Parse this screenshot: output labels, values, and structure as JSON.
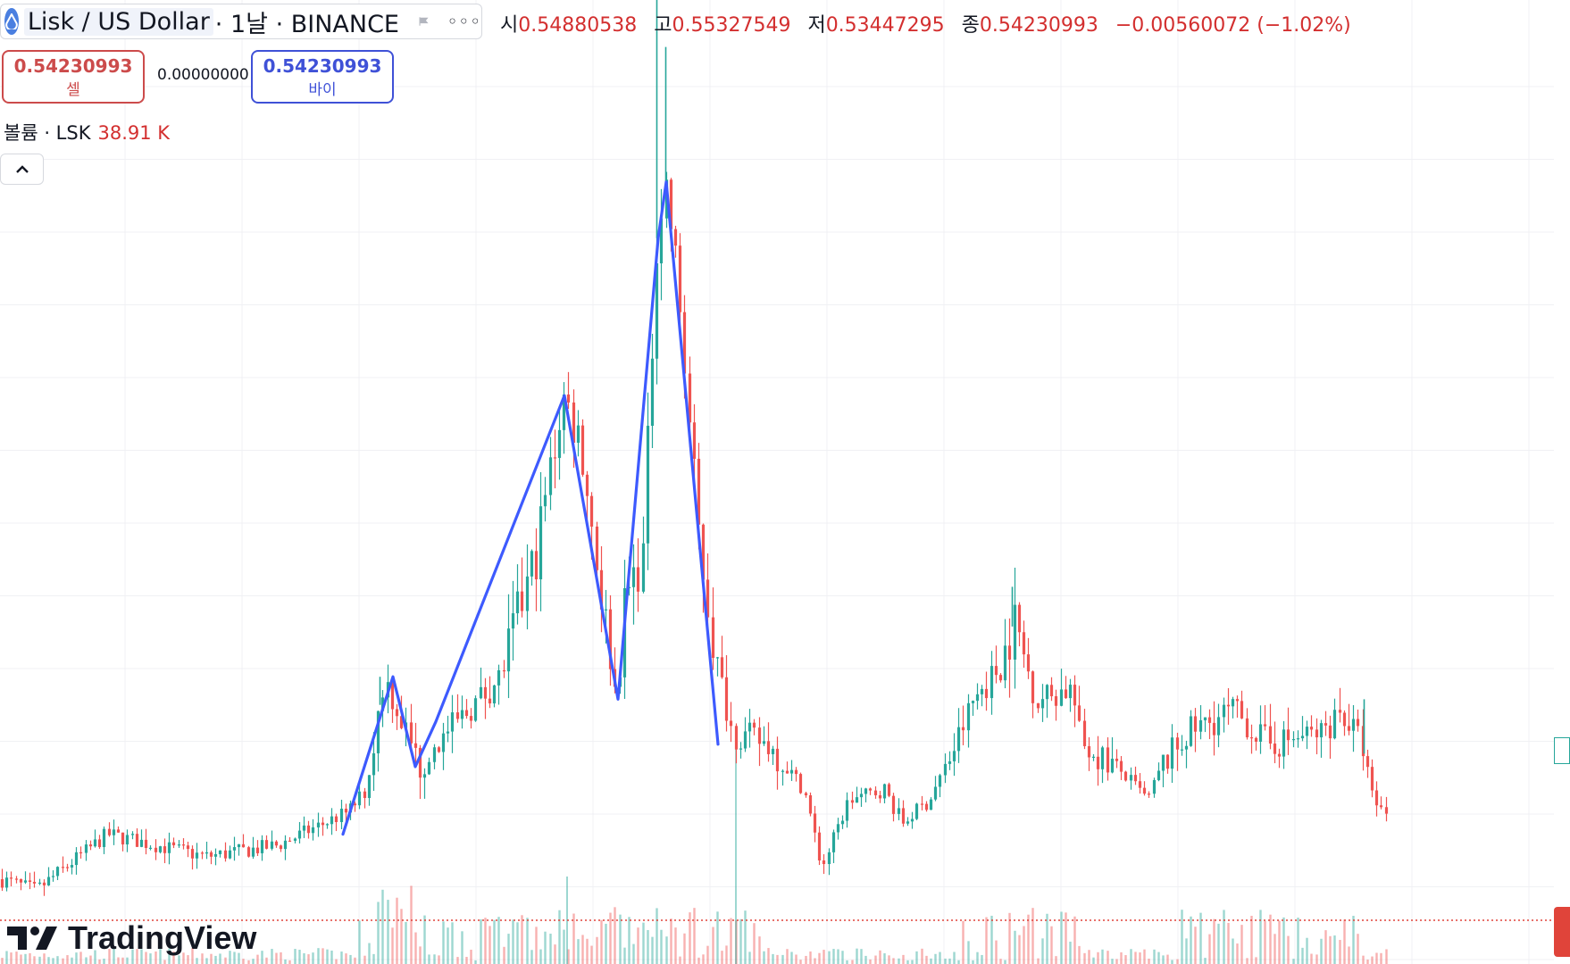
{
  "header": {
    "symbol": "Lisk / US Dollar",
    "meta": "· 1날 · BINANCE",
    "logo_icon": "lisk-droplet-icon",
    "flag_icon": "flag-icon",
    "more_icon": "more-options-icon"
  },
  "ohlc": {
    "open_label": "시",
    "open": "0.54880538",
    "high_label": "고",
    "high": "0.55327549",
    "low_label": "저",
    "low": "0.53447295",
    "close_label": "종",
    "close": "0.54230993",
    "change": "−0.00560072 (−1.02%)"
  },
  "trade": {
    "sell_price": "0.54230993",
    "sell_label": "셀",
    "spread": "0.00000000",
    "buy_price": "0.54230993",
    "buy_label": "바이"
  },
  "volume": {
    "label": "볼륨 · LSK",
    "value": "38.91 K"
  },
  "branding": {
    "name": "TradingView"
  },
  "colors": {
    "up": "#26a69a",
    "down": "#ef5350",
    "drawing": "#3d5afe",
    "accent_red": "#d32f2f"
  },
  "chart_data": {
    "type": "candlestick",
    "interval": "1 day",
    "exchange": "BINANCE",
    "symbol": "LSK/USD",
    "grid": true,
    "waypoints_close_approx": [
      [
        0,
        0.3
      ],
      [
        40,
        0.29
      ],
      [
        120,
        0.34
      ],
      [
        230,
        0.32
      ],
      [
        310,
        0.33
      ],
      [
        390,
        0.36
      ],
      [
        410,
        0.38
      ],
      [
        430,
        0.48
      ],
      [
        445,
        0.45
      ],
      [
        460,
        0.42
      ],
      [
        470,
        0.4
      ],
      [
        500,
        0.43
      ],
      [
        560,
        0.48
      ],
      [
        600,
        0.59
      ],
      [
        630,
        0.73
      ],
      [
        650,
        0.69
      ],
      [
        670,
        0.57
      ],
      [
        690,
        0.46
      ],
      [
        700,
        0.55
      ],
      [
        720,
        0.59
      ],
      [
        735,
        0.87
      ],
      [
        745,
        0.92
      ],
      [
        760,
        0.82
      ],
      [
        780,
        0.62
      ],
      [
        800,
        0.5
      ],
      [
        820,
        0.43
      ],
      [
        860,
        0.42
      ],
      [
        900,
        0.38
      ],
      [
        920,
        0.31
      ],
      [
        950,
        0.37
      ],
      [
        990,
        0.38
      ],
      [
        1010,
        0.35
      ],
      [
        1040,
        0.37
      ],
      [
        1070,
        0.42
      ],
      [
        1090,
        0.46
      ],
      [
        1120,
        0.49
      ],
      [
        1135,
        0.53
      ],
      [
        1160,
        0.46
      ],
      [
        1200,
        0.47
      ],
      [
        1210,
        0.42
      ],
      [
        1250,
        0.4
      ],
      [
        1285,
        0.37
      ],
      [
        1300,
        0.4
      ],
      [
        1330,
        0.43
      ],
      [
        1380,
        0.45
      ],
      [
        1420,
        0.42
      ],
      [
        1480,
        0.43
      ],
      [
        1500,
        0.45
      ],
      [
        1525,
        0.42
      ],
      [
        1537,
        0.37
      ],
      [
        1550,
        0.36
      ]
    ],
    "drawing_polyline": [
      [
        384,
        0.34
      ],
      [
        440,
        0.48
      ],
      [
        465,
        0.4
      ],
      [
        488,
        0.44
      ],
      [
        632,
        0.73
      ],
      [
        692,
        0.46
      ],
      [
        737,
        0.87
      ],
      [
        746,
        0.92
      ],
      [
        804,
        0.42
      ]
    ],
    "spikes_high": [
      [
        735,
        1.09
      ],
      [
        745,
        1.04
      ],
      [
        633,
        0.72
      ],
      [
        425,
        0.48
      ],
      [
        1133,
        0.56
      ],
      [
        1527,
        0.46
      ]
    ]
  }
}
